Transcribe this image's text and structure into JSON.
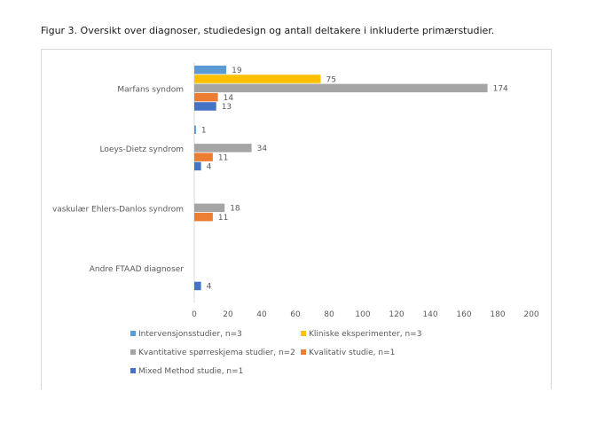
{
  "caption": "Figur 3. Oversikt over diagnoser, studiedesign og antall deltakere i inkluderte primærstudier.",
  "chart_data": {
    "type": "bar",
    "orientation": "horizontal",
    "categories": [
      "Marfans syndom",
      "Loeys-Dietz syndrom",
      "vaskulær Ehlers-Danlos syndrom",
      "Andre FTAAD diagnoser"
    ],
    "series": [
      {
        "name": "Intervensjonsstudier, n=3",
        "color": "#5b9bd5",
        "values": [
          19,
          1,
          null,
          null
        ]
      },
      {
        "name": "Kliniske eksperimenter, n=3",
        "color": "#ffc000",
        "values": [
          75,
          null,
          null,
          null
        ]
      },
      {
        "name": "Kvantitative spørreskjema studier, n=2",
        "color": "#a5a5a5",
        "values": [
          174,
          34,
          18,
          null
        ]
      },
      {
        "name": "Kvalitativ studie, n=1",
        "color": "#ed7d31",
        "values": [
          14,
          11,
          11,
          null
        ]
      },
      {
        "name": "Mixed Method studie, n=1",
        "color": "#4472c4",
        "values": [
          13,
          4,
          null,
          4
        ]
      }
    ],
    "xlim": [
      0,
      200
    ],
    "xticks": [
      0,
      20,
      40,
      60,
      80,
      100,
      120,
      140,
      160,
      180,
      200
    ],
    "grid": false,
    "data_labels": true,
    "legend_position": "bottom"
  }
}
